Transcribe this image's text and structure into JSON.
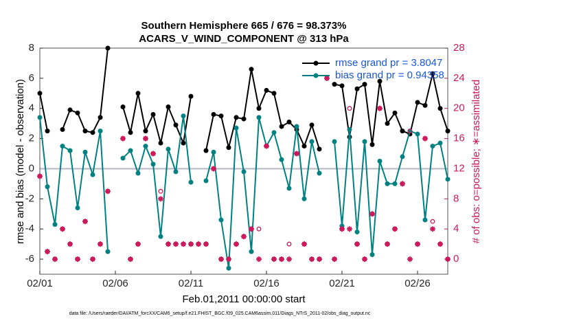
{
  "chart_data": {
    "type": "line",
    "title": "Southern Hemisphere 665 / 676 = 98.373%",
    "subtitle": "ACARS_V_WIND_COMPONENT @ 313 hPa",
    "x_label": "Feb.01,2011 00:00:00 start",
    "y_label": "rmse and bias (model - observation)",
    "y2_label": "# of obs: o=possible; ∗=assimilated",
    "y2_color": "#cc1a5c",
    "footnote": "data file: /Users/raeder/DAI/ATM_forcXX/CAM6_setup/f.e21.FHIST_BGC.f09_025.CAM6assim.011/Diags_NTrS_2011-02/obs_diag_output.nc",
    "legend": "northeast",
    "legend_text_color": "#1a56db",
    "zero_line": true,
    "xlim": [
      0,
      27
    ],
    "xticks": [
      {
        "value": 0,
        "label": "02/01"
      },
      {
        "value": 5,
        "label": "02/06"
      },
      {
        "value": 10,
        "label": "02/11"
      },
      {
        "value": 15,
        "label": "02/16"
      },
      {
        "value": 20,
        "label": "02/21"
      },
      {
        "value": 25,
        "label": "02/26"
      }
    ],
    "ylim": [
      -7,
      8
    ],
    "yticks": [
      -6,
      -4,
      -2,
      0,
      2,
      4,
      6,
      8
    ],
    "y2lim": [
      -2,
      28
    ],
    "y2ticks": [
      0,
      4,
      8,
      12,
      16,
      20,
      24,
      28
    ],
    "x": [
      0,
      0.5,
      1,
      1.5,
      2,
      2.5,
      3,
      3.5,
      4,
      4.5,
      5,
      5.5,
      6,
      6.5,
      7,
      7.5,
      8,
      8.5,
      9,
      9.5,
      10,
      10.5,
      11,
      11.5,
      12,
      12.5,
      13,
      13.5,
      14,
      14.5,
      15,
      15.5,
      16,
      16.5,
      17,
      17.5,
      18,
      18.5,
      19,
      19.5,
      20,
      20.5,
      21,
      21.5,
      22,
      22.5,
      23,
      23.5,
      24,
      24.5,
      25,
      25.5,
      26,
      26.5,
      27
    ],
    "series": [
      {
        "name": "rmse grand pr = 3.8047",
        "color": "#000000",
        "marker": "filled-circle",
        "values": [
          5.0,
          2.5,
          null,
          2.6,
          3.9,
          3.7,
          2.5,
          2.4,
          3.4,
          8.0,
          null,
          4.1,
          2.4,
          5.0,
          2.5,
          3.6,
          1.7,
          4.1,
          2.9,
          1.7,
          4.8,
          null,
          1.2,
          3.6,
          3.5,
          1.4,
          3.4,
          3.3,
          6.6,
          4.0,
          5.2,
          5.0,
          2.8,
          3.1,
          2.6,
          1.5,
          2.9,
          1.3,
          null,
          5.6,
          5.5,
          2.1,
          5.3,
          5.6,
          1.6,
          5.8,
          3.0,
          3.7,
          2.5,
          2.3,
          4.4,
          4.2,
          6.3,
          4.0,
          2.5
        ]
      },
      {
        "name": "bias grand pr = 0.94358",
        "color": "#008080",
        "marker": "filled-circle",
        "values": [
          3.4,
          -1.2,
          -3.7,
          1.5,
          1.2,
          -2.6,
          1.1,
          -0.4,
          2.5,
          -5.5,
          null,
          0.7,
          1.2,
          -0.3,
          1.5,
          0.3,
          -4.5,
          1.3,
          -0.2,
          3.5,
          -0.9,
          null,
          -0.8,
          1.1,
          -3.4,
          -6.6,
          2.7,
          -0.2,
          -5.5,
          3.4,
          1.5,
          2.4,
          0.6,
          -1.3,
          2.8,
          -2.0,
          1.8,
          -0.3,
          null,
          1.8,
          -3.8,
          2.6,
          -4.2,
          1.8,
          -5.7,
          0.5,
          -1.0,
          -1.0,
          0.8,
          2.5,
          2.3,
          -3.4,
          1.5,
          1.7,
          -0.7
        ]
      },
      {
        "color": "#cc1a5c",
        "marker": "open-circle",
        "axis": "y2",
        "values": [
          11,
          1,
          0,
          4,
          2,
          0,
          5,
          0,
          2,
          9,
          null,
          16,
          0,
          2,
          16,
          14,
          9,
          2,
          2,
          2,
          2,
          2,
          2,
          12,
          0,
          0,
          2,
          3,
          4,
          4,
          15,
          0,
          0,
          2,
          14,
          2,
          0,
          0,
          24,
          0,
          4,
          20,
          2,
          0,
          6,
          20,
          2,
          4,
          10,
          17,
          2,
          16,
          5,
          2,
          0
        ]
      },
      {
        "color": "#cc1a5c",
        "marker": "asterisk",
        "axis": "y2",
        "values": [
          11,
          1,
          0,
          4,
          2,
          0,
          5,
          0,
          2,
          9,
          null,
          16,
          0,
          2,
          16,
          14,
          8,
          2,
          2,
          2,
          2,
          2,
          2,
          12,
          0,
          0,
          2,
          3,
          4,
          0,
          15,
          0,
          0,
          0,
          14,
          2,
          0,
          0,
          24,
          0,
          4,
          4,
          2,
          0,
          6,
          20,
          2,
          4,
          10,
          0,
          2,
          16,
          4,
          2,
          0
        ]
      }
    ]
  }
}
